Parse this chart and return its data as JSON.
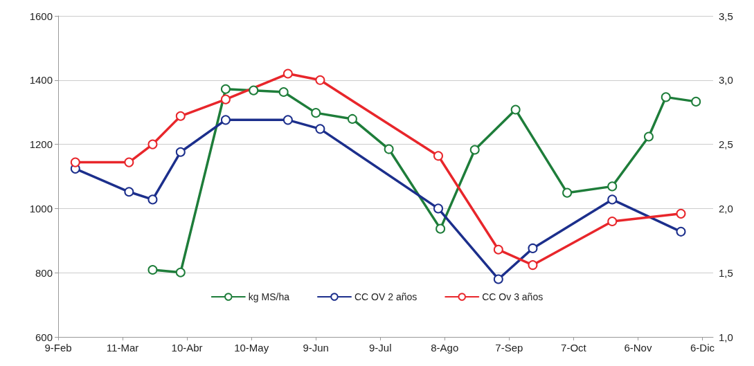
{
  "chart_data": {
    "type": "line",
    "xlim": [
      "--02-09",
      "--12-11"
    ],
    "xticks": [
      {
        "value": "--02-09",
        "label": "9-Feb"
      },
      {
        "value": "--03-11",
        "label": "11-Mar"
      },
      {
        "value": "--04-10",
        "label": "10-Abr"
      },
      {
        "value": "--05-10",
        "label": "10-May"
      },
      {
        "value": "--06-09",
        "label": "9-Jun"
      },
      {
        "value": "--07-09",
        "label": "9-Jul"
      },
      {
        "value": "--08-08",
        "label": "8-Ago"
      },
      {
        "value": "--09-07",
        "label": "7-Sep"
      },
      {
        "value": "--10-07",
        "label": "7-Oct"
      },
      {
        "value": "--11-06",
        "label": "6-Nov"
      },
      {
        "value": "--12-06",
        "label": "6-Dic"
      }
    ],
    "ylim": [
      600,
      1600
    ],
    "yticks": [
      600,
      800,
      1000,
      1200,
      1400,
      1600
    ],
    "y2lim": [
      1,
      3.5
    ],
    "y2ticks": [
      {
        "value": 1,
        "label": "1,0"
      },
      {
        "value": 1.5,
        "label": "1,5"
      },
      {
        "value": 2,
        "label": "2,0"
      },
      {
        "value": 2.5,
        "label": "2,5"
      },
      {
        "value": 3,
        "label": "3,0"
      },
      {
        "value": 3.5,
        "label": "3,5"
      }
    ],
    "grid": "y",
    "legend": "bottom",
    "marker": "circle",
    "line_style": "solid",
    "series": [
      {
        "name": "kg MS/ha",
        "color": "#1e7d3a",
        "x": [
          "--03-25",
          "--04-07",
          "--04-28",
          "--05-11",
          "--05-25",
          "--06-09",
          "--06-26",
          "--07-13",
          "--08-06",
          "--08-22",
          "--09-10",
          "--10-04",
          "--10-25",
          "--11-11",
          "--11-19",
          "--12-03"
        ],
        "values": [
          809,
          801,
          1372,
          1368,
          1363,
          1298,
          1279,
          1185,
          937,
          1183,
          1308,
          1049,
          1069,
          1224,
          1347,
          1333
        ]
      },
      {
        "name": "CC OV 2 años",
        "color": "#1c2f8c",
        "axis": "y2",
        "x": [
          "--02-17",
          "--03-14",
          "--03-25",
          "--04-07",
          "--04-28",
          "--05-27",
          "--06-11",
          "--08-05",
          "--09-02",
          "--09-18",
          "--10-25",
          "--11-26"
        ],
        "values": [
          2.31,
          2.13,
          2.07,
          2.44,
          2.69,
          2.69,
          2.62,
          2.0,
          1.45,
          1.69,
          2.07,
          1.82
        ]
      },
      {
        "name": "CC Ov 3 años",
        "color": "#e8262b",
        "axis": "y2",
        "x": [
          "--02-17",
          "--03-14",
          "--03-25",
          "--04-07",
          "--04-28",
          "--05-27",
          "--06-11",
          "--08-05",
          "--09-02",
          "--09-18",
          "--10-25",
          "--11-26"
        ],
        "values": [
          2.36,
          2.36,
          2.5,
          2.72,
          2.85,
          3.05,
          3.0,
          2.41,
          1.68,
          1.56,
          1.9,
          1.96
        ]
      }
    ]
  }
}
